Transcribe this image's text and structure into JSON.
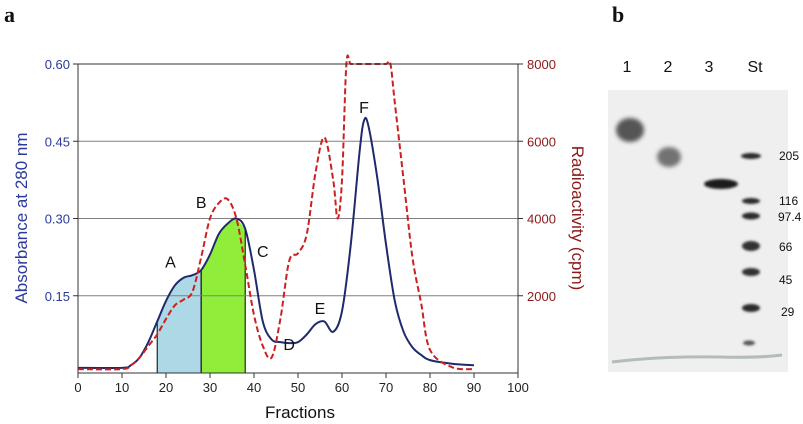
{
  "panel_labels": {
    "a": "a",
    "b": "b"
  },
  "colors": {
    "absorbance": "#1f2a6b",
    "radioactivity": "#cc2020",
    "left_axis_text": "#2b3a9c",
    "right_axis_text": "#8b1a1a",
    "fill_A": "#add8e6",
    "fill_B": "#90ee3a",
    "grid": "#808080",
    "gel_background": "#e8e8e8",
    "gel_band": "#3a3a3a"
  },
  "chart_data": [
    {
      "type": "line",
      "xlabel": "Fractions",
      "ylabel_left": "Absorbance at 280 nm",
      "ylabel_right": "Radioactivity (cpm)",
      "xlim": [
        0,
        100
      ],
      "x_ticks": [
        "0",
        "10",
        "20",
        "30",
        "40",
        "50",
        "60",
        "70",
        "80",
        "90",
        "100"
      ],
      "ylim_left": [
        0,
        0.6
      ],
      "y_ticks_left": [
        "0.15",
        "0.30",
        "0.45",
        "0.60"
      ],
      "ylim_right": [
        0,
        8000
      ],
      "y_ticks_right": [
        "2000",
        "4000",
        "6000",
        "8000"
      ],
      "grid": true,
      "series": [
        {
          "axis": "left",
          "style": "solid",
          "x": [
            0,
            10,
            12,
            14,
            16,
            18,
            20,
            22,
            24,
            26,
            28,
            30,
            32,
            34,
            36,
            38,
            40,
            42,
            44,
            46,
            48,
            50,
            52,
            54,
            56,
            58,
            60,
            62,
            64,
            65,
            66,
            68,
            70,
            72,
            74,
            76,
            78,
            80,
            85,
            90
          ],
          "y": [
            0.01,
            0.01,
            0.015,
            0.03,
            0.06,
            0.1,
            0.14,
            0.17,
            0.185,
            0.19,
            0.2,
            0.23,
            0.27,
            0.29,
            0.3,
            0.28,
            0.2,
            0.1,
            0.065,
            0.06,
            0.058,
            0.06,
            0.075,
            0.095,
            0.1,
            0.08,
            0.12,
            0.25,
            0.43,
            0.49,
            0.48,
            0.38,
            0.25,
            0.14,
            0.08,
            0.05,
            0.035,
            0.025,
            0.018,
            0.015
          ]
        },
        {
          "axis": "right",
          "style": "dashed",
          "x": [
            0,
            10,
            12,
            14,
            16,
            18,
            20,
            22,
            24,
            26,
            28,
            30,
            32,
            34,
            36,
            38,
            40,
            42,
            44,
            46,
            48,
            50,
            52,
            54,
            56,
            58,
            59,
            60,
            61,
            62,
            64,
            68,
            70,
            71,
            72,
            74,
            76,
            78,
            80,
            85,
            90
          ],
          "y": [
            100,
            100,
            200,
            400,
            700,
            1000,
            1400,
            1750,
            1900,
            2100,
            3000,
            4000,
            4400,
            4500,
            4000,
            2800,
            1500,
            700,
            400,
            1400,
            2900,
            3100,
            3600,
            5200,
            6100,
            5000,
            4000,
            5000,
            8000,
            8000,
            8000,
            8000,
            8000,
            8000,
            7000,
            5000,
            3000,
            1800,
            600,
            150,
            100
          ]
        }
      ],
      "shaded_regions": [
        {
          "x_from": 18,
          "x_to": 28,
          "color": "#add8e6"
        },
        {
          "x_from": 28,
          "x_to": 38,
          "color": "#90ee3a"
        }
      ],
      "annotations": [
        {
          "text": "A",
          "x": 21,
          "y": 0.205
        },
        {
          "text": "B",
          "x": 28,
          "y": 0.32
        },
        {
          "text": "C",
          "x": 42,
          "y": 0.225
        },
        {
          "text": "D",
          "x": 48,
          "y": 0.045
        },
        {
          "text": "E",
          "x": 55,
          "y": 0.115
        },
        {
          "text": "F",
          "x": 65,
          "y": 0.505
        }
      ]
    }
  ],
  "gel": {
    "lane_labels": [
      "1",
      "2",
      "3",
      "St"
    ],
    "marker_labels": [
      "205",
      "116",
      "97.4",
      "66",
      "45",
      "29"
    ]
  }
}
